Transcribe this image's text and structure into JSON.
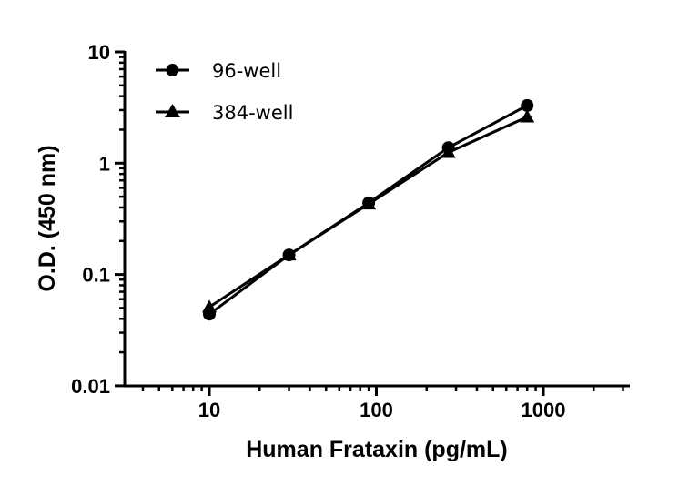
{
  "chart_data": {
    "type": "line",
    "title": "",
    "xlabel": "Human Frataxin (pg/mL)",
    "ylabel": "O.D. (450 nm)",
    "xscale": "log",
    "yscale": "log",
    "xlim": [
      3,
      3000
    ],
    "ylim": [
      0.01,
      10
    ],
    "xticks": [
      "10",
      "100",
      "1000"
    ],
    "yticks": [
      "0.01",
      "0.1",
      "1",
      "10"
    ],
    "grid": false,
    "legend_position": "upper-left",
    "x": [
      10,
      30,
      90,
      270,
      800
    ],
    "series": [
      {
        "name": "96-well",
        "marker": "circle",
        "values": [
          0.044,
          0.15,
          0.44,
          1.38,
          3.3
        ]
      },
      {
        "name": "384-well",
        "marker": "triangle",
        "values": [
          0.051,
          0.15,
          0.43,
          1.25,
          2.6
        ]
      }
    ]
  },
  "legend": {
    "items": [
      {
        "label": "96-well",
        "marker": "circle"
      },
      {
        "label": "384-well",
        "marker": "triangle"
      }
    ]
  },
  "axes": {
    "x_title": "Human Frataxin (pg/mL)",
    "y_title": "O.D. (450 nm)",
    "x_tick_labels": [
      "10",
      "100",
      "1000"
    ],
    "y_tick_labels": [
      "10",
      "1",
      "0.1",
      "0.01"
    ]
  },
  "colors": {
    "line": "#000000",
    "background": "#ffffff"
  }
}
